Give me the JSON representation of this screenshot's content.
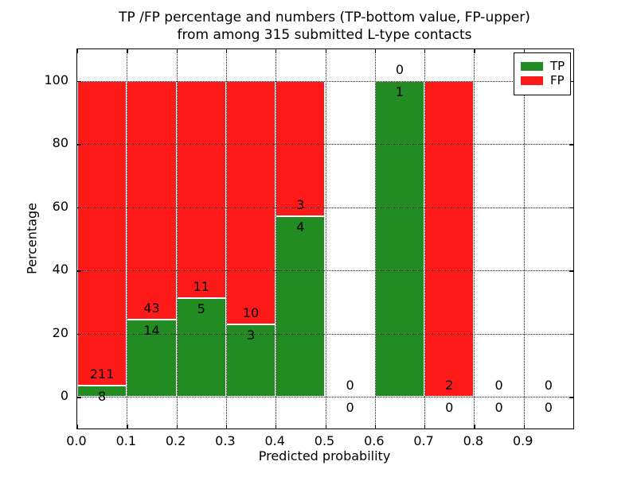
{
  "chart_data": {
    "type": "bar",
    "stacked": true,
    "title_lines": [
      "TP /FP percentage and numbers (TP-bottom value, FP-upper)",
      "from among 315 submitted L-type contacts"
    ],
    "xlabel": "Predicted probability",
    "ylabel": "Percentage",
    "x_tick_labels": [
      "0.0",
      "0.1",
      "0.2",
      "0.3",
      "0.4",
      "0.5",
      "0.6",
      "0.7",
      "0.8",
      "0.9"
    ],
    "y_ticks": [
      0,
      20,
      40,
      60,
      80,
      100
    ],
    "y_tick_labels": [
      "0",
      "20",
      "40",
      "60",
      "80",
      "100"
    ],
    "xlim": [
      0.0,
      1.0
    ],
    "ylim": [
      -10,
      110
    ],
    "grid": true,
    "grid_style": "dotted",
    "bin_width": 0.1,
    "bin_starts": [
      0.0,
      0.1,
      0.2,
      0.3,
      0.4,
      0.5,
      0.6,
      0.7,
      0.8,
      0.9
    ],
    "categories": [
      "0.0-0.1",
      "0.1-0.2",
      "0.2-0.3",
      "0.3-0.4",
      "0.4-0.5",
      "0.5-0.6",
      "0.6-0.7",
      "0.7-0.8",
      "0.8-0.9",
      "0.9-1.0"
    ],
    "series": [
      {
        "name": "TP",
        "color": "#228B22",
        "counts": [
          8,
          14,
          5,
          3,
          4,
          0,
          1,
          0,
          0,
          0
        ]
      },
      {
        "name": "FP",
        "color": "#FF1A1A",
        "counts": [
          211,
          43,
          11,
          10,
          3,
          0,
          0,
          2,
          0,
          0
        ]
      }
    ],
    "tp_percent": [
      3.7,
      24.6,
      31.3,
      23.1,
      57.1,
      0,
      100,
      0,
      0,
      0
    ],
    "legend": {
      "position": "upper right",
      "entries": [
        {
          "label": "TP",
          "color": "#228B22"
        },
        {
          "label": "FP",
          "color": "#FF1A1A"
        }
      ]
    },
    "bar_edge_color": "#ffffff",
    "axis_color": "#000000",
    "background": "#ffffff"
  }
}
